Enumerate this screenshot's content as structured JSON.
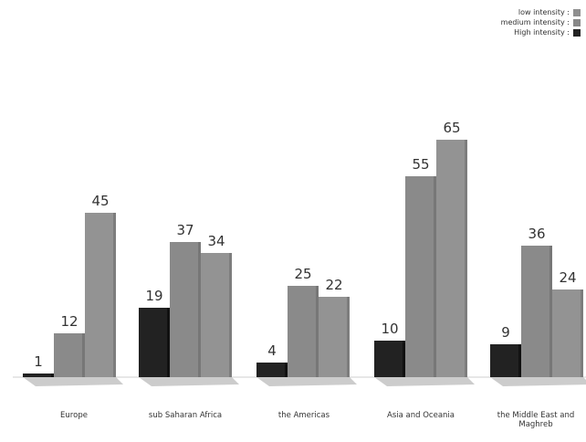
{
  "chart_data": {
    "type": "bar",
    "categories": [
      "Europe",
      "sub Saharan Africa",
      "the Americas",
      "Asia and Oceania",
      "the Middle East and Maghreb"
    ],
    "series": [
      {
        "name": "High intensity :",
        "color": "#222222",
        "values": [
          1,
          19,
          4,
          10,
          9
        ]
      },
      {
        "name": "medium intensity :",
        "color": "#888888",
        "values": [
          12,
          37,
          25,
          55,
          36
        ]
      },
      {
        "name": "low intensity :",
        "color": "#8f8f8f",
        "values": [
          45,
          34,
          22,
          65,
          24
        ]
      }
    ],
    "value_labels": [
      [
        "1",
        "12",
        "45"
      ],
      [
        "19",
        "37",
        "34"
      ],
      [
        "4",
        "25",
        "22"
      ],
      [
        "10",
        "55",
        "65"
      ],
      [
        "9",
        "36",
        "24"
      ]
    ],
    "legend": {
      "position": "top-right",
      "order": [
        "low intensity :",
        "medium intensity :",
        "High intensity :"
      ]
    },
    "grid": false,
    "ylim": [
      0,
      70
    ]
  }
}
